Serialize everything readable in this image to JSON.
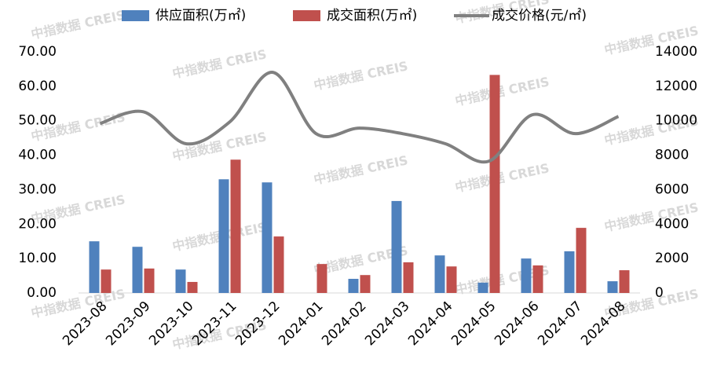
{
  "chart_data": {
    "type": "bar",
    "watermark": "中指数据 CREIS",
    "categories": [
      "2023-08",
      "2023-09",
      "2023-10",
      "2023-11",
      "2023-12",
      "2024-01",
      "2024-02",
      "2024-03",
      "2024-04",
      "2024-05",
      "2024-06",
      "2024-07",
      "2024-08"
    ],
    "series": [
      {
        "name": "供应面积(万㎡)",
        "color": "#4f81bd",
        "values": [
          15.0,
          13.4,
          6.8,
          33.0,
          32.1,
          0,
          4.1,
          26.7,
          10.9,
          3.0,
          10.0,
          12.1,
          3.4
        ]
      },
      {
        "name": "成交面积(万㎡)",
        "color": "#c0504d",
        "values": [
          6.8,
          7.1,
          3.2,
          38.7,
          16.4,
          8.4,
          5.2,
          8.9,
          7.7,
          63.3,
          8.0,
          18.9,
          6.6
        ]
      },
      {
        "name": "成交价格(元/㎡)",
        "color": "#808080",
        "type": "line",
        "axis": "y2",
        "values": [
          9840,
          10520,
          8660,
          9930,
          12810,
          9250,
          9570,
          9250,
          8660,
          7650,
          10340,
          9250,
          10250
        ]
      }
    ],
    "ylim": [
      0,
      70
    ],
    "yticks": [
      {
        "value": 0,
        "label": "0.00"
      },
      {
        "value": 10,
        "label": "10.00"
      },
      {
        "value": 20,
        "label": "20.00"
      },
      {
        "value": 30,
        "label": "30.00"
      },
      {
        "value": 40,
        "label": "40.00"
      },
      {
        "value": 50,
        "label": "50.00"
      },
      {
        "value": 60,
        "label": "60.00"
      },
      {
        "value": 70,
        "label": "70.00"
      }
    ],
    "y2lim": [
      0,
      14000
    ],
    "y2ticks": [
      0,
      2000,
      4000,
      6000,
      8000,
      10000,
      12000,
      14000
    ],
    "legend": "top"
  }
}
